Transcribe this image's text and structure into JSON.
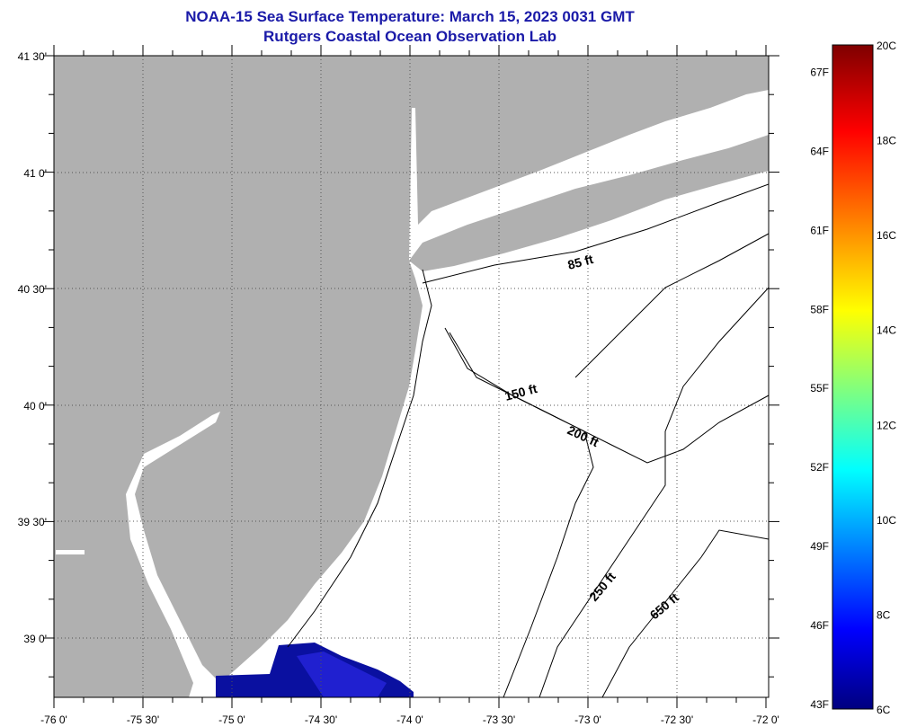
{
  "title": "NOAA-15 Sea Surface Temperature:  March 15, 2023 0031 GMT",
  "subtitle": "Rutgers Coastal Ocean Observation Lab",
  "lon_labels": [
    "-76 0'",
    "-75 30'",
    "-75 0'",
    "-74 30'",
    "-74 0'",
    "-73 30'",
    "-73 0'",
    "-72 30'",
    "-72 0'"
  ],
  "lat_labels": [
    "41 30'",
    "41 0'",
    "40 30'",
    "40 0'",
    "39 30'",
    "39 0'"
  ],
  "contour_labels": [
    "85 ft",
    "150 ft",
    "200 ft",
    "250 ft",
    "650 ft"
  ],
  "colorbar": {
    "fahrenheit": [
      "67F",
      "64F",
      "61F",
      "58F",
      "55F",
      "52F",
      "49F",
      "46F",
      "43F"
    ],
    "celsius": [
      "20C",
      "18C",
      "16C",
      "14C",
      "12C",
      "10C",
      "8C",
      "6C"
    ],
    "range_c": [
      6,
      20
    ]
  },
  "colors": {
    "land": "#b0b0b0",
    "title": "#1a1aa8",
    "sst_patch": "#0a10a0"
  }
}
